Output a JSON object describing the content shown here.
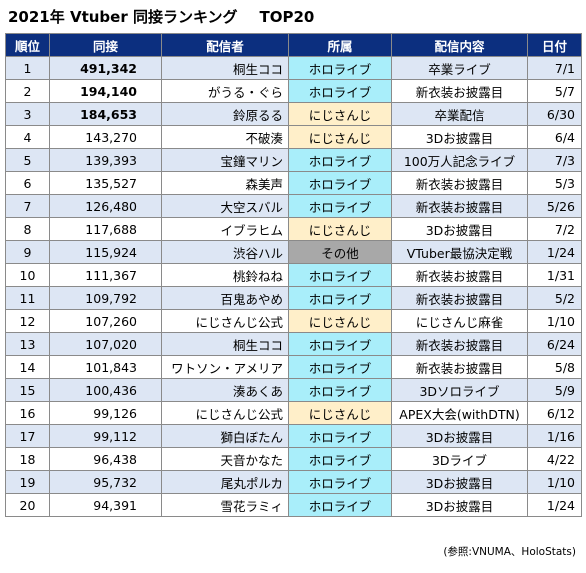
{
  "title": "2021年 Vtuber 同接ランキング",
  "title_suffix": "TOP20",
  "headers": [
    "順位",
    "同接",
    "配信者",
    "所属",
    "配信内容",
    "日付"
  ],
  "rows": [
    {
      "rank": "1",
      "count": "491,342",
      "name": "桐生ココ",
      "aff": "ホロライブ",
      "content": "卒業ライブ",
      "date": "7/1"
    },
    {
      "rank": "2",
      "count": "194,140",
      "name": "がうる・ぐら",
      "aff": "ホロライブ",
      "content": "新衣装お披露目",
      "date": "5/7"
    },
    {
      "rank": "3",
      "count": "184,653",
      "name": "鈴原るる",
      "aff": "にじさんじ",
      "content": "卒業配信",
      "date": "6/30"
    },
    {
      "rank": "4",
      "count": "143,270",
      "name": "不破湊",
      "aff": "にじさんじ",
      "content": "3Dお披露目",
      "date": "6/4"
    },
    {
      "rank": "5",
      "count": "139,393",
      "name": "宝鐘マリン",
      "aff": "ホロライブ",
      "content": "100万人記念ライブ",
      "date": "7/3"
    },
    {
      "rank": "6",
      "count": "135,527",
      "name": "森美声",
      "aff": "ホロライブ",
      "content": "新衣装お披露目",
      "date": "5/3"
    },
    {
      "rank": "7",
      "count": "126,480",
      "name": "大空スバル",
      "aff": "ホロライブ",
      "content": "新衣装お披露目",
      "date": "5/26"
    },
    {
      "rank": "8",
      "count": "117,688",
      "name": "イブラヒム",
      "aff": "にじさんじ",
      "content": "3Dお披露目",
      "date": "7/2"
    },
    {
      "rank": "9",
      "count": "115,924",
      "name": "渋谷ハル",
      "aff": "その他",
      "content": "VTuber最協決定戦",
      "date": "1/24"
    },
    {
      "rank": "10",
      "count": "111,367",
      "name": "桃鈴ねね",
      "aff": "ホロライブ",
      "content": "新衣装お披露目",
      "date": "1/31"
    },
    {
      "rank": "11",
      "count": "109,792",
      "name": "百鬼あやめ",
      "aff": "ホロライブ",
      "content": "新衣装お披露目",
      "date": "5/2"
    },
    {
      "rank": "12",
      "count": "107,260",
      "name": "にじさんじ公式",
      "aff": "にじさんじ",
      "content": "にじさんじ麻雀",
      "date": "1/10"
    },
    {
      "rank": "13",
      "count": "107,020",
      "name": "桐生ココ",
      "aff": "ホロライブ",
      "content": "新衣装お披露目",
      "date": "6/24"
    },
    {
      "rank": "14",
      "count": "101,843",
      "name": "ワトソン・アメリア",
      "aff": "ホロライブ",
      "content": "新衣装お披露目",
      "date": "5/8"
    },
    {
      "rank": "15",
      "count": "100,436",
      "name": "湊あくあ",
      "aff": "ホロライブ",
      "content": "3Dソロライブ",
      "date": "5/9"
    },
    {
      "rank": "16",
      "count": "99,126",
      "name": "にじさんじ公式",
      "aff": "にじさんじ",
      "content": "APEX大会(withDTN)",
      "date": "6/12"
    },
    {
      "rank": "17",
      "count": "99,112",
      "name": "獅白ぼたん",
      "aff": "ホロライブ",
      "content": "3Dお披露目",
      "date": "1/16"
    },
    {
      "rank": "18",
      "count": "96,438",
      "name": "天音かなた",
      "aff": "ホロライブ",
      "content": "3Dライブ",
      "date": "4/22"
    },
    {
      "rank": "19",
      "count": "95,732",
      "name": "尾丸ポルカ",
      "aff": "ホロライブ",
      "content": "3Dお披露目",
      "date": "1/10"
    },
    {
      "rank": "20",
      "count": "94,391",
      "name": "雪花ラミィ",
      "aff": "ホロライブ",
      "content": "3Dお披露目",
      "date": "1/24"
    }
  ],
  "source": "(参照:VNUMA、HoloStats)",
  "colors": {
    "header_bg": "#0c2f7f",
    "row_stripe": "#dde6f4",
    "hololive": "#a9eefa",
    "nijisanji": "#ffefc9",
    "other": "#a8a8a8"
  }
}
